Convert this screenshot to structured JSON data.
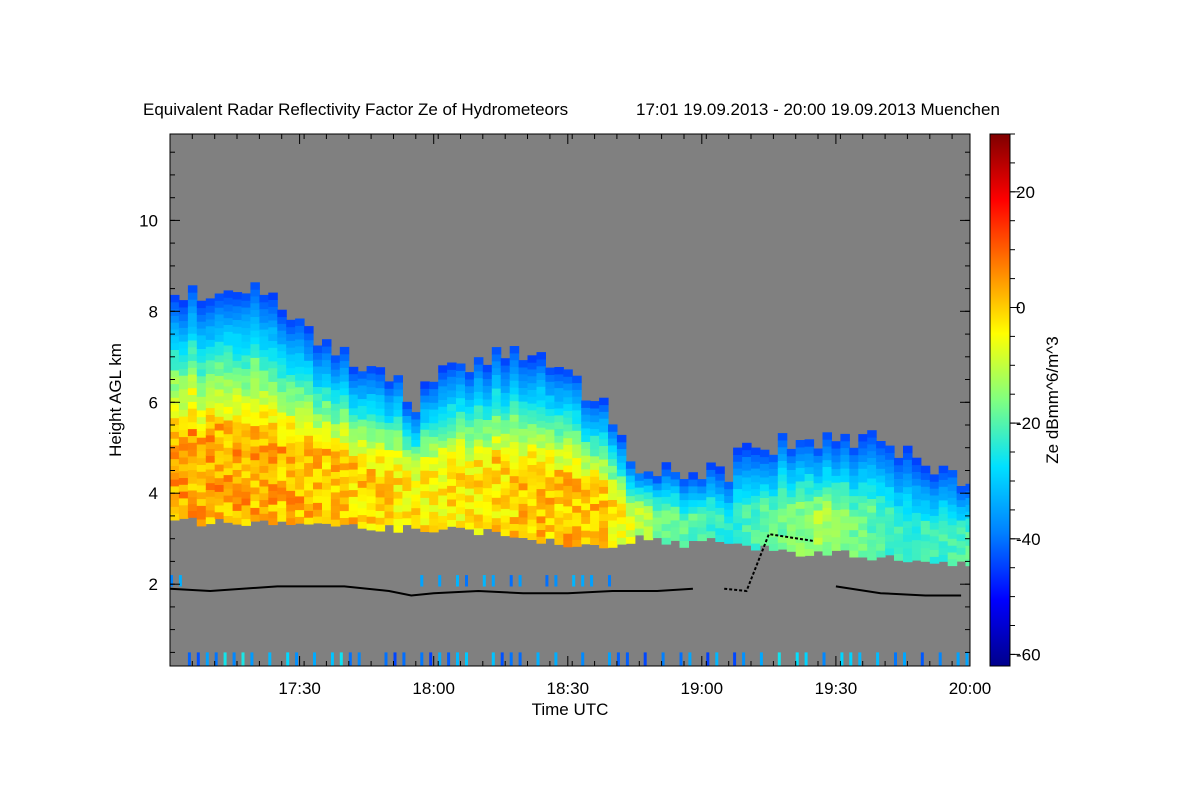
{
  "chart_data": {
    "type": "heatmap",
    "title": "Equivalent Radar Reflectivity Factor Ze of Hydrometeors",
    "subtitle": "17:01 19.09.2013 - 20:00 19.09.2013 Muenchen",
    "xlabel": "Time UTC",
    "ylabel": "Height AGL km",
    "x_ticks": [
      "17:30",
      "18:00",
      "18:30",
      "19:00",
      "19:30",
      "20:00"
    ],
    "x_tick_minutes": [
      30,
      60,
      90,
      120,
      150,
      180
    ],
    "xlim_minutes": [
      1,
      180
    ],
    "y_ticks": [
      2,
      4,
      6,
      8,
      10
    ],
    "ylim": [
      0.2,
      11.9
    ],
    "colorbar": {
      "label": "Ze dBmm^6/m^3",
      "ticks": [
        -60,
        -40,
        -20,
        0,
        20
      ],
      "range": [
        -62,
        30
      ],
      "colors": [
        "#00008b",
        "#0000ff",
        "#0080ff",
        "#00e0ff",
        "#80ff80",
        "#ffff00",
        "#ff8000",
        "#ff0000",
        "#800000"
      ]
    },
    "no_data_color": "#808080",
    "cloud_base_line": {
      "color": "#000000",
      "x_minutes": [
        1,
        10,
        25,
        40,
        50,
        55,
        60,
        70,
        80,
        90,
        100,
        110,
        118,
        125,
        130,
        135,
        145,
        150,
        160,
        170,
        178
      ],
      "y_km": [
        1.9,
        1.85,
        1.95,
        1.95,
        1.85,
        1.75,
        1.8,
        1.85,
        1.8,
        1.8,
        1.85,
        1.85,
        1.9,
        1.9,
        1.85,
        3.1,
        2.95,
        1.95,
        1.8,
        1.75,
        1.75
      ]
    },
    "echo_top_km": {
      "x_minutes": [
        1,
        15,
        18,
        25,
        40,
        50,
        55,
        60,
        70,
        80,
        90,
        100,
        105,
        115,
        125,
        130,
        145,
        160,
        170,
        180
      ],
      "y_km": [
        8.3,
        8.5,
        8.6,
        8.0,
        7.0,
        6.5,
        6.0,
        6.5,
        7.0,
        7.0,
        6.5,
        5.5,
        4.5,
        4.5,
        4.5,
        5.0,
        5.2,
        5.1,
        4.5,
        4.2
      ]
    }
  }
}
